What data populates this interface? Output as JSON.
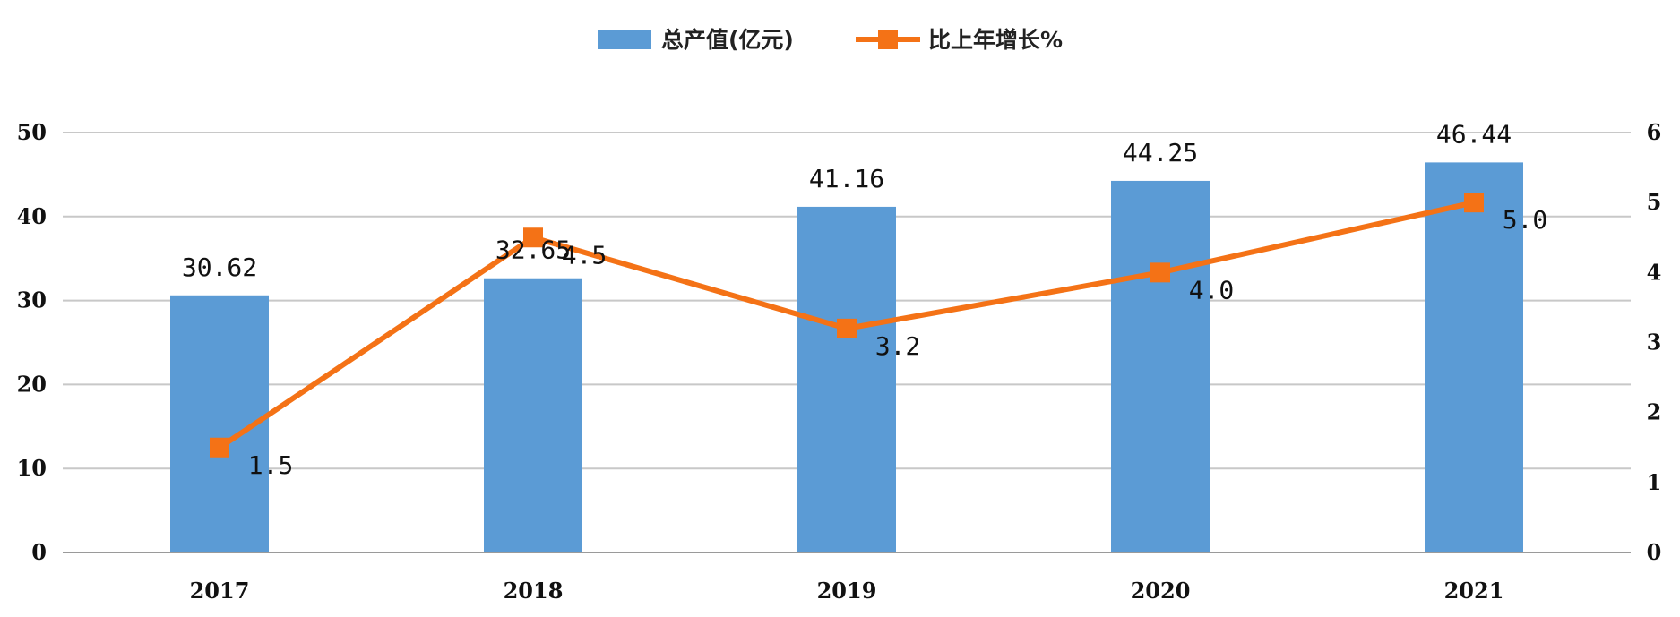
{
  "chart_data": {
    "type": "bar+line",
    "categories": [
      "2017",
      "2018",
      "2019",
      "2020",
      "2021"
    ],
    "series": [
      {
        "name": "总产值(亿元)",
        "type": "bar",
        "axis": "left",
        "values": [
          30.62,
          32.65,
          41.16,
          44.25,
          46.44
        ],
        "labels": [
          "30.62",
          "32.65",
          "41.16",
          "44.25",
          "46.44"
        ]
      },
      {
        "name": "比上年增长%",
        "type": "line",
        "axis": "right",
        "values": [
          1.5,
          4.5,
          3.2,
          4.0,
          5.0
        ],
        "labels": [
          "1.5",
          "4.5",
          "3.2",
          "4.0",
          "5.0"
        ]
      }
    ],
    "y_left": {
      "range": [
        0,
        50
      ],
      "ticks": [
        "0",
        "10",
        "20",
        "30",
        "40",
        "50"
      ]
    },
    "y_right": {
      "range": [
        0,
        6
      ],
      "ticks": [
        "0",
        "1",
        "2",
        "3",
        "4",
        "5",
        "6"
      ]
    },
    "grid": true,
    "legend_position": "top-center",
    "colors": {
      "bar": "#5b9bd5",
      "line": "#f47216",
      "grid": "#c8c8c8",
      "axis": "#9a9a9a"
    }
  }
}
